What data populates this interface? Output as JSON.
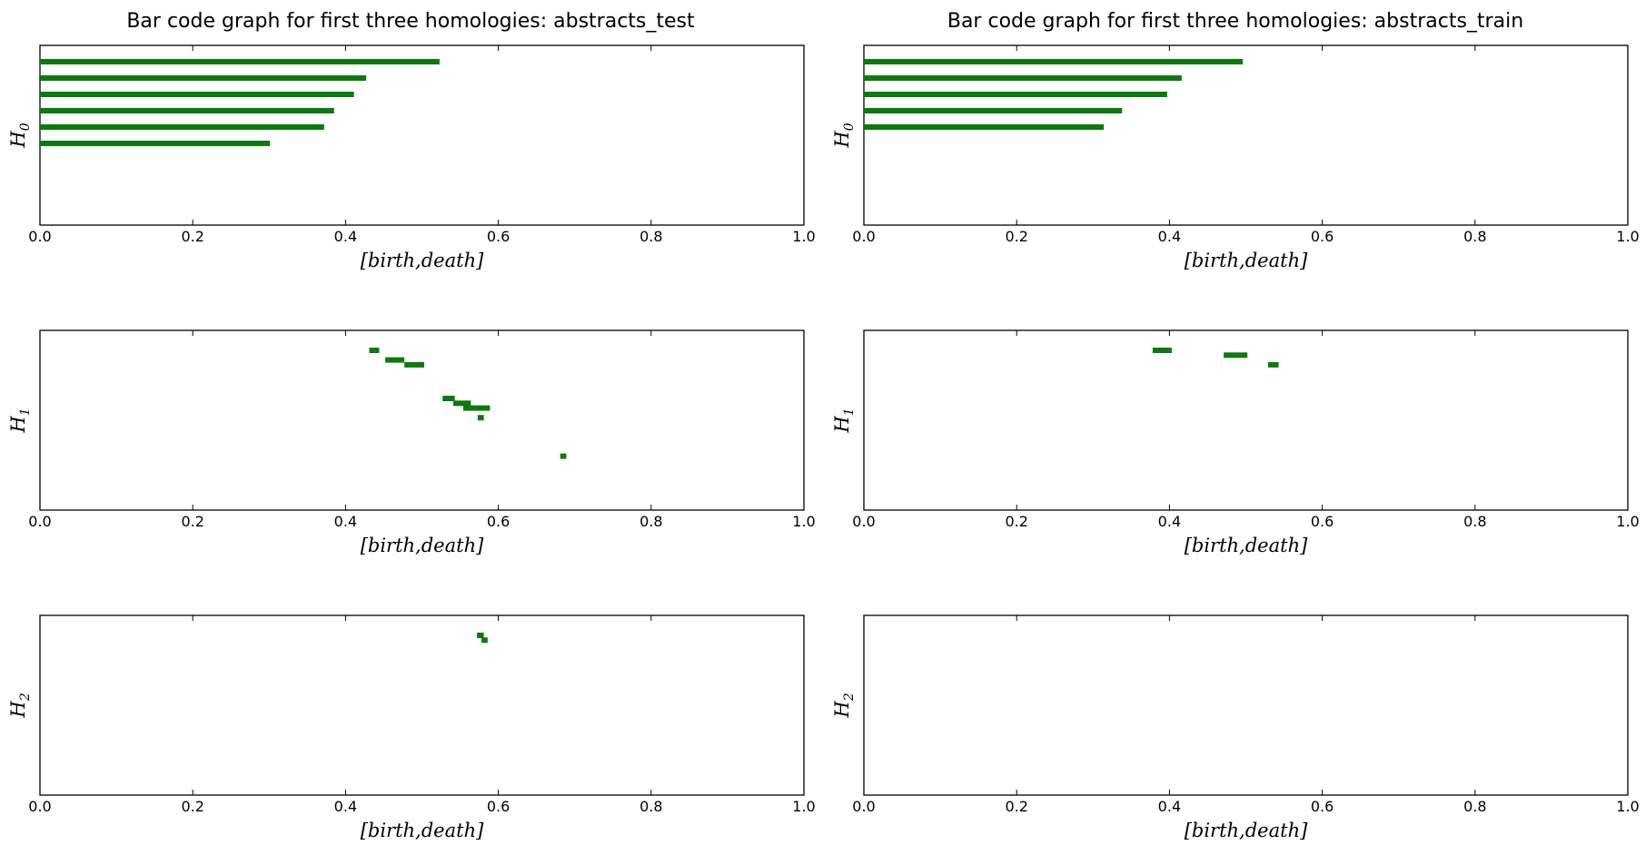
{
  "chart_data": [
    {
      "type": "bar",
      "title": "Bar code graph for first three homologies: abstracts_test",
      "panels": [
        {
          "ylabel": "H",
          "ylabel_sub": "0",
          "xlabel": "[birth,death]",
          "xlim": [
            0,
            1
          ],
          "xticks": [
            "0.0",
            "0.2",
            "0.4",
            "0.6",
            "0.8",
            "1.0"
          ],
          "bars": [
            {
              "birth": 0.0,
              "death": 0.523
            },
            {
              "birth": 0.0,
              "death": 0.427
            },
            {
              "birth": 0.0,
              "death": 0.411
            },
            {
              "birth": 0.0,
              "death": 0.385
            },
            {
              "birth": 0.0,
              "death": 0.372
            },
            {
              "birth": 0.0,
              "death": 0.301
            }
          ]
        },
        {
          "ylabel": "H",
          "ylabel_sub": "1",
          "xlabel": "[birth,death]",
          "xlim": [
            0,
            1
          ],
          "xticks": [
            "0.0",
            "0.2",
            "0.4",
            "0.6",
            "0.8",
            "1.0"
          ],
          "bars": [
            {
              "birth": 0.431,
              "death": 0.444
            },
            {
              "birth": 0.452,
              "death": 0.477
            },
            {
              "birth": 0.477,
              "death": 0.503
            },
            {
              "birth": 0.527,
              "death": 0.543
            },
            {
              "birth": 0.541,
              "death": 0.564
            },
            {
              "birth": 0.554,
              "death": 0.589
            },
            {
              "birth": 0.573,
              "death": 0.581
            },
            {
              "birth": 0.681,
              "death": 0.689
            }
          ],
          "rows": [
            0,
            2,
            3,
            10,
            11,
            12,
            14,
            22
          ]
        },
        {
          "ylabel": "H",
          "ylabel_sub": "2",
          "xlabel": "[birth,death]",
          "xlim": [
            0,
            1
          ],
          "xticks": [
            "0.0",
            "0.2",
            "0.4",
            "0.6",
            "0.8",
            "1.0"
          ],
          "bars": [
            {
              "birth": 0.572,
              "death": 0.581
            },
            {
              "birth": 0.578,
              "death": 0.586
            }
          ],
          "rows": [
            0,
            1
          ]
        }
      ]
    },
    {
      "type": "bar",
      "title": "Bar code graph for first three homologies: abstracts_train",
      "panels": [
        {
          "ylabel": "H",
          "ylabel_sub": "0",
          "xlabel": "[birth,death]",
          "xlim": [
            0,
            1
          ],
          "xticks": [
            "0.0",
            "0.2",
            "0.4",
            "0.6",
            "0.8",
            "1.0"
          ],
          "bars": [
            {
              "birth": 0.0,
              "death": 0.496
            },
            {
              "birth": 0.0,
              "death": 0.416
            },
            {
              "birth": 0.0,
              "death": 0.397
            },
            {
              "birth": 0.0,
              "death": 0.338
            },
            {
              "birth": 0.0,
              "death": 0.314
            }
          ]
        },
        {
          "ylabel": "H",
          "ylabel_sub": "1",
          "xlabel": "[birth,death]",
          "xlim": [
            0,
            1
          ],
          "xticks": [
            "0.0",
            "0.2",
            "0.4",
            "0.6",
            "0.8",
            "1.0"
          ],
          "bars": [
            {
              "birth": 0.378,
              "death": 0.403
            },
            {
              "birth": 0.471,
              "death": 0.502
            },
            {
              "birth": 0.529,
              "death": 0.543
            }
          ],
          "rows": [
            0,
            1,
            3
          ]
        },
        {
          "ylabel": "H",
          "ylabel_sub": "2",
          "xlabel": "[birth,death]",
          "xlim": [
            0,
            1
          ],
          "xticks": [
            "0.0",
            "0.2",
            "0.4",
            "0.6",
            "0.8",
            "1.0"
          ],
          "bars": []
        }
      ]
    }
  ],
  "colors": {
    "bar": "#0c7a0c",
    "axis": "#000000",
    "background": "#ffffff"
  }
}
